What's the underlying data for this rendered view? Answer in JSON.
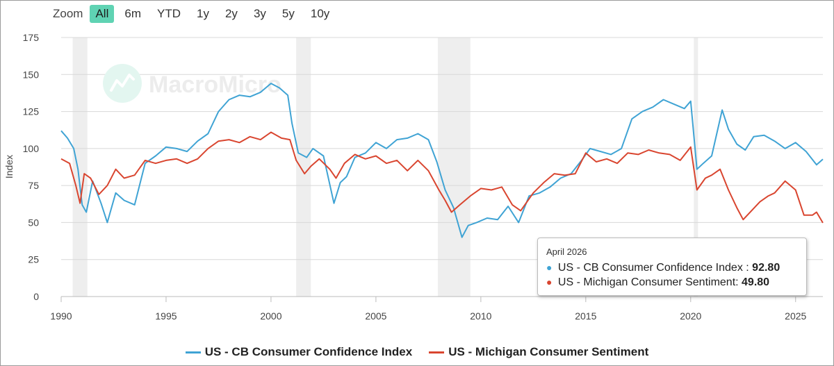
{
  "zoom": {
    "label": "Zoom",
    "buttons": [
      "All",
      "6m",
      "YTD",
      "1y",
      "2y",
      "3y",
      "5y",
      "10y"
    ],
    "active": "All"
  },
  "watermark": "MacroMicro",
  "tooltip": {
    "date": "April 2026",
    "rows": [
      {
        "label": "US - CB Consumer Confidence Index :",
        "value": "92.80"
      },
      {
        "label": "US - Michigan Consumer Sentiment:",
        "value": "49.80"
      }
    ]
  },
  "legend": [
    "US - CB Consumer Confidence Index",
    "US - Michigan Consumer Sentiment"
  ],
  "chart_data": {
    "type": "line",
    "ylabel": "Index",
    "xlabel": "",
    "ylim": [
      0,
      175
    ],
    "xlim": [
      1990,
      2026.3
    ],
    "y_ticks": [
      0,
      25,
      50,
      75,
      100,
      125,
      150,
      175
    ],
    "x_ticks": [
      1990,
      1995,
      2000,
      2005,
      2010,
      2015,
      2020,
      2025
    ],
    "recessions": [
      [
        1990.55,
        1991.25
      ],
      [
        2001.2,
        2001.9
      ],
      [
        2007.95,
        2009.5
      ],
      [
        2020.15,
        2020.35
      ]
    ],
    "grid": true,
    "legend_position": "bottom",
    "series": [
      {
        "name": "US - CB Consumer Confidence Index",
        "color": "#3fa3d4",
        "x": [
          1990,
          1990.3,
          1990.6,
          1990.8,
          1991.0,
          1991.2,
          1991.5,
          1991.9,
          1992.2,
          1992.6,
          1993.0,
          1993.5,
          1994.0,
          1994.5,
          1995.0,
          1995.5,
          1996.0,
          1996.5,
          1997.0,
          1997.5,
          1998.0,
          1998.5,
          1999.0,
          1999.5,
          2000.0,
          2000.4,
          2000.8,
          2001.0,
          2001.3,
          2001.7,
          2002.0,
          2002.5,
          2003.0,
          2003.3,
          2003.6,
          2004.0,
          2004.5,
          2005.0,
          2005.5,
          2006.0,
          2006.5,
          2007.0,
          2007.5,
          2007.9,
          2008.3,
          2008.7,
          2009.1,
          2009.4,
          2009.8,
          2010.3,
          2010.8,
          2011.3,
          2011.8,
          2012.3,
          2012.8,
          2013.3,
          2013.8,
          2014.3,
          2014.8,
          2015.2,
          2015.7,
          2016.2,
          2016.7,
          2017.2,
          2017.7,
          2018.2,
          2018.7,
          2019.2,
          2019.7,
          2020.0,
          2020.3,
          2020.6,
          2021.0,
          2021.5,
          2021.8,
          2022.2,
          2022.6,
          2023.0,
          2023.5,
          2024.0,
          2024.5,
          2025.0,
          2025.5,
          2026.0,
          2026.3
        ],
        "values": [
          112,
          107,
          100,
          86,
          62,
          57,
          78,
          63,
          50,
          70,
          65,
          62,
          90,
          95,
          101,
          100,
          98,
          105,
          110,
          125,
          133,
          136,
          135,
          138,
          144,
          141,
          136,
          117,
          97,
          94,
          100,
          95,
          63,
          77,
          81,
          94,
          97,
          104,
          100,
          106,
          107,
          110,
          106,
          91,
          72,
          60,
          40,
          48,
          50,
          53,
          52,
          61,
          50,
          68,
          70,
          74,
          80,
          83,
          92,
          100,
          98,
          96,
          100,
          120,
          125,
          128,
          133,
          130,
          127,
          132,
          86,
          90,
          95,
          126,
          113,
          103,
          99,
          108,
          109,
          105,
          100,
          104,
          98,
          89,
          92.8
        ]
      },
      {
        "name": "US - Michigan Consumer Sentiment",
        "color": "#d9452f",
        "x": [
          1990,
          1990.4,
          1990.7,
          1990.9,
          1991.1,
          1991.4,
          1991.8,
          1992.2,
          1992.6,
          1993.0,
          1993.5,
          1994.0,
          1994.5,
          1995.0,
          1995.5,
          1996.0,
          1996.5,
          1997.0,
          1997.5,
          1998.0,
          1998.5,
          1999.0,
          1999.5,
          2000.0,
          2000.5,
          2000.9,
          2001.2,
          2001.6,
          2001.9,
          2002.3,
          2002.8,
          2003.1,
          2003.5,
          2004.0,
          2004.5,
          2005.0,
          2005.5,
          2006.0,
          2006.5,
          2007.0,
          2007.5,
          2008.0,
          2008.3,
          2008.6,
          2009.0,
          2009.5,
          2010.0,
          2010.5,
          2011.0,
          2011.5,
          2011.9,
          2012.5,
          2013.0,
          2013.5,
          2014.0,
          2014.5,
          2015.0,
          2015.5,
          2016.0,
          2016.5,
          2017.0,
          2017.5,
          2018.0,
          2018.5,
          2019.0,
          2019.5,
          2020.0,
          2020.3,
          2020.7,
          2021.0,
          2021.4,
          2021.8,
          2022.2,
          2022.5,
          2022.9,
          2023.3,
          2023.7,
          2024.0,
          2024.5,
          2025.0,
          2025.4,
          2025.8,
          2026.0,
          2026.3
        ],
        "values": [
          93,
          90,
          75,
          63,
          83,
          80,
          69,
          75,
          86,
          80,
          82,
          92,
          90,
          92,
          93,
          90,
          93,
          100,
          105,
          106,
          104,
          108,
          106,
          111,
          107,
          106,
          92,
          83,
          88,
          93,
          86,
          80,
          90,
          96,
          93,
          95,
          90,
          92,
          85,
          92,
          85,
          72,
          65,
          57,
          62,
          68,
          73,
          72,
          74,
          62,
          58,
          70,
          77,
          83,
          82,
          83,
          97,
          91,
          93,
          90,
          97,
          96,
          99,
          97,
          96,
          92,
          101,
          72,
          80,
          82,
          86,
          72,
          60,
          52,
          58,
          64,
          68,
          70,
          78,
          72,
          55,
          55,
          57,
          49.8
        ]
      }
    ]
  }
}
